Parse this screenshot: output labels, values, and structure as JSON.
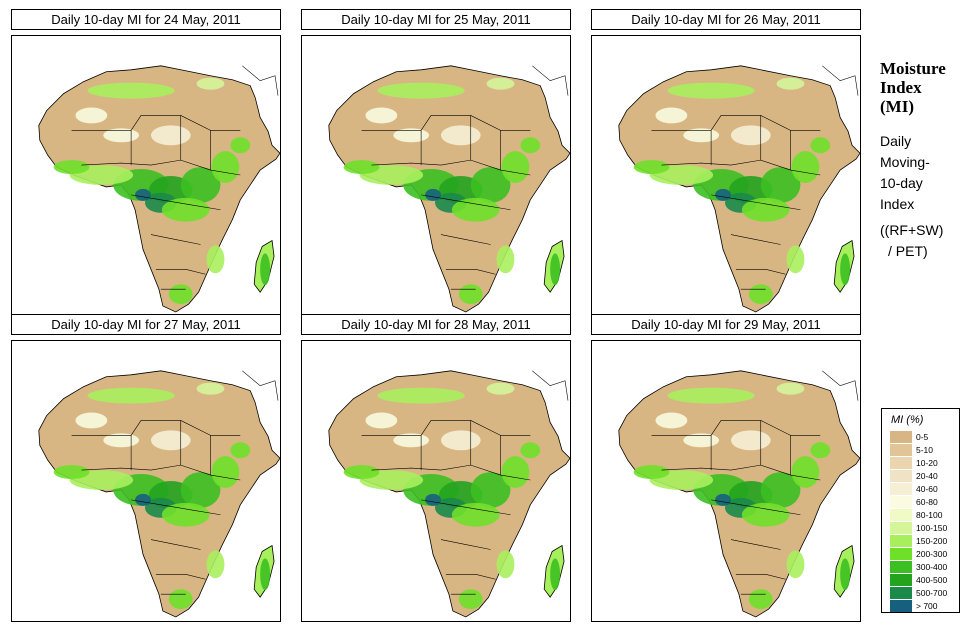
{
  "panels": [
    {
      "title": "Daily 10-day MI for  24 May, 2011"
    },
    {
      "title": "Daily 10-day MI for  25 May, 2011"
    },
    {
      "title": "Daily 10-day MI for  26 May, 2011"
    },
    {
      "title": "Daily 10-day MI for  27 May, 2011"
    },
    {
      "title": "Daily 10-day MI for  28 May, 2011"
    },
    {
      "title": "Daily 10-day MI for  29 May, 2011"
    }
  ],
  "sidebar": {
    "title_line1": "Moisture",
    "title_line2": "Index",
    "title_line3": "(MI)",
    "desc_line1": "Daily",
    "desc_line2": "Moving-",
    "desc_line3": "10-day",
    "desc_line4": "Index",
    "formula_line1": "((RF+SW)",
    "formula_line2": "/ PET)"
  },
  "legend": {
    "title": "MI (%)",
    "items": [
      {
        "label": "0-5",
        "color": "#d8b683"
      },
      {
        "label": "5-10",
        "color": "#e2c596"
      },
      {
        "label": "10-20",
        "color": "#ead5ae"
      },
      {
        "label": "20-40",
        "color": "#f0e2c4"
      },
      {
        "label": "40-60",
        "color": "#f6efd6"
      },
      {
        "label": "60-80",
        "color": "#fafbe0"
      },
      {
        "label": "80-100",
        "color": "#f0fac4"
      },
      {
        "label": "100-150",
        "color": "#d4f59a"
      },
      {
        "label": "150-200",
        "color": "#a8ef5e"
      },
      {
        "label": "200-300",
        "color": "#6fe02a"
      },
      {
        "label": "300-400",
        "color": "#3cc021"
      },
      {
        "label": "400-500",
        "color": "#24a31f"
      },
      {
        "label": "500-700",
        "color": "#1a8a4a"
      },
      {
        "label": "> 700",
        "color": "#16607e"
      }
    ]
  }
}
